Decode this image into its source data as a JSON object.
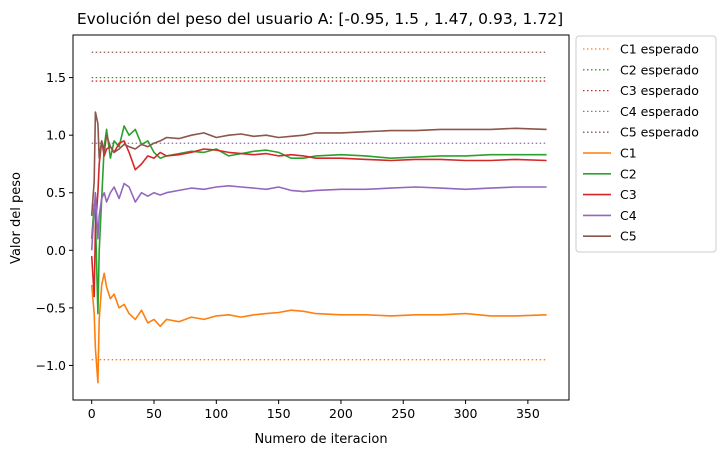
{
  "chart_data": {
    "type": "line",
    "title": "Evolución del peso del usuario A: [-0.95, 1.5 , 1.47, 0.93, 1.72]",
    "xlabel": "Numero de iteracion",
    "ylabel": "Valor del peso",
    "xlim": [
      -15,
      383
    ],
    "ylim": [
      -1.3,
      1.87
    ],
    "xticks": [
      0,
      50,
      100,
      150,
      200,
      250,
      300,
      350
    ],
    "yticks": [
      -1.0,
      -0.5,
      0.0,
      0.5,
      1.0,
      1.5
    ],
    "xtick_labels": [
      "0",
      "50",
      "100",
      "150",
      "200",
      "250",
      "300",
      "350"
    ],
    "ytick_labels": [
      "−1.0",
      "−0.5",
      "0.0",
      "0.5",
      "1.0",
      "1.5"
    ],
    "legend_position": "outside-top-right",
    "expected": [
      {
        "name": "C1 esperado",
        "value": -0.95,
        "color": "#ff7f0e"
      },
      {
        "name": "C2 esperado",
        "value": 1.5,
        "color": "#2ca02c"
      },
      {
        "name": "C3 esperado",
        "value": 1.47,
        "color": "#d62728"
      },
      {
        "name": "C4 esperado",
        "value": 0.93,
        "color": "#9467bd"
      },
      {
        "name": "C5 esperado",
        "value": 1.72,
        "color": "#8c564b"
      }
    ],
    "x_range": [
      0,
      365
    ],
    "series": [
      {
        "name": "C1",
        "color": "#ff7f0e",
        "x": [
          0,
          2,
          3,
          5,
          6,
          8,
          10,
          12,
          15,
          18,
          22,
          26,
          30,
          35,
          40,
          45,
          50,
          55,
          60,
          70,
          80,
          90,
          100,
          110,
          120,
          130,
          140,
          150,
          160,
          170,
          180,
          200,
          220,
          240,
          260,
          280,
          300,
          320,
          340,
          365
        ],
        "y": [
          -0.3,
          -0.55,
          -0.85,
          -1.15,
          -0.6,
          -0.3,
          -0.2,
          -0.32,
          -0.42,
          -0.38,
          -0.5,
          -0.47,
          -0.55,
          -0.6,
          -0.52,
          -0.63,
          -0.6,
          -0.66,
          -0.6,
          -0.62,
          -0.58,
          -0.6,
          -0.57,
          -0.56,
          -0.58,
          -0.56,
          -0.55,
          -0.54,
          -0.52,
          -0.53,
          -0.55,
          -0.56,
          -0.56,
          -0.57,
          -0.56,
          -0.56,
          -0.55,
          -0.57,
          -0.57,
          -0.56
        ]
      },
      {
        "name": "C2",
        "color": "#2ca02c",
        "x": [
          0,
          2,
          3,
          5,
          6,
          8,
          10,
          12,
          15,
          18,
          22,
          26,
          30,
          35,
          40,
          45,
          50,
          55,
          60,
          70,
          80,
          90,
          100,
          110,
          120,
          130,
          140,
          150,
          160,
          170,
          180,
          200,
          220,
          240,
          260,
          280,
          300,
          320,
          340,
          365
        ],
        "y": [
          0.1,
          0.4,
          0.3,
          -0.55,
          0.0,
          0.45,
          0.9,
          1.05,
          0.8,
          0.95,
          0.9,
          1.08,
          1.0,
          1.05,
          0.92,
          0.95,
          0.85,
          0.8,
          0.82,
          0.84,
          0.86,
          0.85,
          0.88,
          0.82,
          0.84,
          0.86,
          0.87,
          0.85,
          0.8,
          0.8,
          0.82,
          0.83,
          0.82,
          0.8,
          0.81,
          0.82,
          0.82,
          0.83,
          0.83,
          0.83
        ]
      },
      {
        "name": "C3",
        "color": "#d62728",
        "x": [
          0,
          2,
          3,
          5,
          6,
          8,
          10,
          12,
          15,
          18,
          22,
          26,
          30,
          35,
          40,
          45,
          50,
          55,
          60,
          70,
          80,
          90,
          100,
          110,
          120,
          130,
          140,
          150,
          160,
          170,
          180,
          200,
          220,
          240,
          260,
          280,
          300,
          320,
          340,
          365
        ],
        "y": [
          -0.05,
          -0.4,
          0.2,
          0.5,
          0.75,
          0.95,
          0.82,
          0.88,
          0.9,
          0.85,
          0.93,
          0.95,
          0.85,
          0.7,
          0.75,
          0.82,
          0.8,
          0.85,
          0.82,
          0.83,
          0.85,
          0.88,
          0.87,
          0.85,
          0.84,
          0.83,
          0.84,
          0.82,
          0.83,
          0.82,
          0.8,
          0.8,
          0.79,
          0.78,
          0.79,
          0.79,
          0.78,
          0.78,
          0.79,
          0.78
        ]
      },
      {
        "name": "C4",
        "color": "#9467bd",
        "x": [
          0,
          2,
          3,
          5,
          6,
          8,
          10,
          12,
          15,
          18,
          22,
          26,
          30,
          35,
          40,
          45,
          50,
          55,
          60,
          70,
          80,
          90,
          100,
          110,
          120,
          130,
          140,
          150,
          160,
          170,
          180,
          200,
          220,
          240,
          260,
          280,
          300,
          320,
          340,
          365
        ],
        "y": [
          0.0,
          0.35,
          0.5,
          0.1,
          0.3,
          0.45,
          0.5,
          0.42,
          0.5,
          0.55,
          0.45,
          0.58,
          0.55,
          0.42,
          0.5,
          0.47,
          0.5,
          0.48,
          0.5,
          0.52,
          0.54,
          0.53,
          0.55,
          0.56,
          0.55,
          0.54,
          0.53,
          0.55,
          0.52,
          0.51,
          0.52,
          0.53,
          0.53,
          0.54,
          0.55,
          0.54,
          0.53,
          0.54,
          0.55,
          0.55
        ]
      },
      {
        "name": "C5",
        "color": "#8c564b",
        "x": [
          0,
          2,
          3,
          5,
          6,
          8,
          10,
          12,
          15,
          18,
          22,
          26,
          30,
          35,
          40,
          45,
          50,
          55,
          60,
          70,
          80,
          90,
          100,
          110,
          120,
          130,
          140,
          150,
          160,
          170,
          180,
          200,
          220,
          240,
          260,
          280,
          300,
          320,
          340,
          365
        ],
        "y": [
          0.3,
          0.6,
          1.2,
          1.1,
          0.8,
          0.95,
          0.85,
          1.0,
          0.9,
          0.85,
          0.88,
          0.92,
          0.9,
          0.88,
          0.92,
          0.9,
          0.93,
          0.95,
          0.98,
          0.97,
          1.0,
          1.02,
          0.98,
          1.0,
          1.01,
          0.99,
          1.0,
          0.98,
          0.99,
          1.0,
          1.02,
          1.02,
          1.03,
          1.04,
          1.04,
          1.05,
          1.05,
          1.05,
          1.06,
          1.05
        ]
      }
    ]
  }
}
